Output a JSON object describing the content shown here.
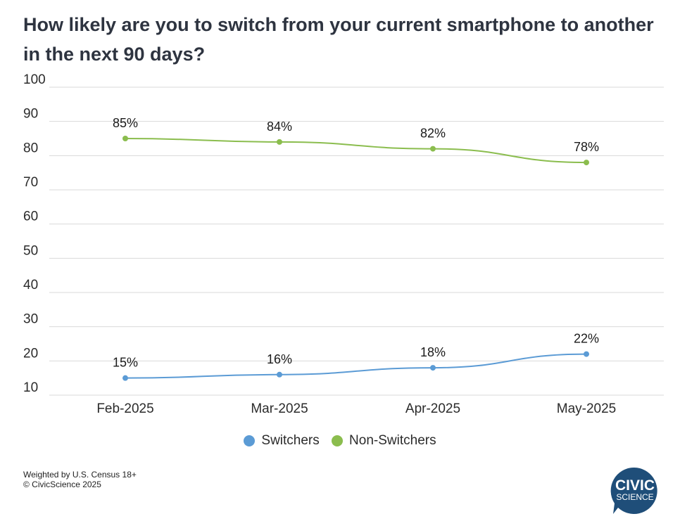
{
  "title": "How likely are you to switch from your current smartphone to another in the next 90 days?",
  "colors": {
    "switchers": "#5b9bd5",
    "non_switchers": "#8bbd4e",
    "grid": "#d9d9d9",
    "logo": "#1f4e79"
  },
  "chart_data": {
    "type": "line",
    "title": "How likely are you to switch from your current smartphone to another in the next 90 days?",
    "categories": [
      "Feb-2025",
      "Mar-2025",
      "Apr-2025",
      "May-2025"
    ],
    "ylim": [
      10,
      100
    ],
    "yticks": [
      "10",
      "20",
      "30",
      "40",
      "50",
      "60",
      "70",
      "80",
      "90",
      "100"
    ],
    "grid": true,
    "legend_position": "bottom",
    "series": [
      {
        "name": "Switchers",
        "values": [
          15,
          16,
          18,
          22
        ],
        "labels": [
          "15%",
          "16%",
          "18%",
          "22%"
        ]
      },
      {
        "name": "Non-Switchers",
        "values": [
          85,
          84,
          82,
          78
        ],
        "labels": [
          "85%",
          "84%",
          "82%",
          "78%"
        ]
      }
    ]
  },
  "footer": {
    "line1": "Weighted by U.S. Census 18+",
    "line2": "© CivicScience 2025"
  },
  "logo": {
    "line1": "CIVIC",
    "line2": "SCIENCE"
  }
}
